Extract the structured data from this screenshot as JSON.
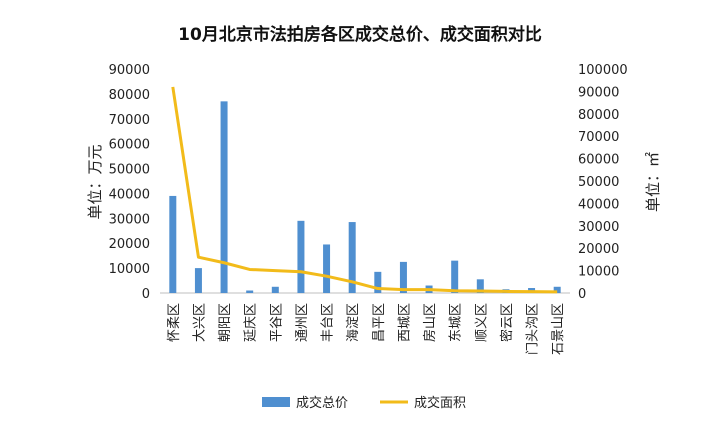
{
  "chart_data": {
    "type": "bar",
    "title": "10月北京市法拍房各区成交总价、成交面积对比",
    "ylabel": "单位：万元",
    "y2label": "单位：㎡",
    "ylim": [
      0,
      90000
    ],
    "y2lim": [
      0,
      100000
    ],
    "yticks": [
      "90000",
      "80000",
      "70000",
      "60000",
      "50000",
      "40000",
      "30000",
      "20000",
      "10000",
      "0"
    ],
    "y2ticks": [
      "100000",
      "90000",
      "80000",
      "70000",
      "60000",
      "50000",
      "40000",
      "30000",
      "20000",
      "10000",
      "0"
    ],
    "categories": [
      "怀柔区",
      "大兴区",
      "朝阳区",
      "延庆区",
      "平谷区",
      "通州区",
      "丰台区",
      "海淀区",
      "昌平区",
      "西城区",
      "房山区",
      "东城区",
      "顺义区",
      "密云区",
      "门头沟区",
      "石景山区"
    ],
    "series": [
      {
        "name": "成交总价",
        "type": "bar",
        "axis": "left",
        "color": "#4f8fd0",
        "values": [
          39000,
          10000,
          77000,
          1000,
          2500,
          29000,
          19500,
          28500,
          8500,
          12500,
          3000,
          13000,
          5500,
          1500,
          2000,
          2500
        ]
      },
      {
        "name": "成交面积",
        "type": "line",
        "axis": "right",
        "color": "#f2bb1a",
        "values": [
          92000,
          16000,
          13500,
          10500,
          10000,
          9500,
          7500,
          5000,
          2000,
          1500,
          1500,
          1000,
          900,
          700,
          600,
          500
        ]
      }
    ],
    "grid": false,
    "legend": "bottom-center"
  }
}
